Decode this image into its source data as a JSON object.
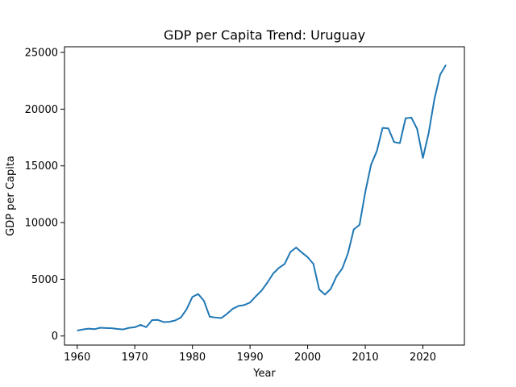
{
  "chart_data": {
    "type": "line",
    "title": "GDP per Capita Trend: Uruguay",
    "xlabel": "Year",
    "ylabel": "GDP per Capita",
    "xlim": [
      1957.8,
      2027.2
    ],
    "ylim": [
      -800,
      25500
    ],
    "xticks": [
      1960,
      1970,
      1980,
      1990,
      2000,
      2010,
      2020
    ],
    "yticks": [
      0,
      5000,
      10000,
      15000,
      20000,
      25000
    ],
    "grid": false,
    "legend": "none",
    "series": [
      {
        "color": "#1f77b4",
        "x": [
          1960,
          1961,
          1962,
          1963,
          1964,
          1965,
          1966,
          1967,
          1968,
          1969,
          1970,
          1971,
          1972,
          1973,
          1974,
          1975,
          1976,
          1977,
          1978,
          1979,
          1980,
          1981,
          1982,
          1983,
          1984,
          1985,
          1986,
          1987,
          1988,
          1989,
          1990,
          1991,
          1992,
          1993,
          1994,
          1995,
          1996,
          1997,
          1998,
          1999,
          2000,
          2001,
          2002,
          2003,
          2004,
          2005,
          2006,
          2007,
          2008,
          2009,
          2010,
          2011,
          2012,
          2013,
          2014,
          2015,
          2016,
          2017,
          2018,
          2019,
          2020,
          2021,
          2022,
          2023,
          2024
        ],
        "y": [
          480,
          580,
          650,
          600,
          730,
          700,
          680,
          620,
          580,
          720,
          770,
          980,
          780,
          1400,
          1420,
          1230,
          1250,
          1370,
          1630,
          2370,
          3450,
          3700,
          3100,
          1700,
          1630,
          1580,
          1950,
          2400,
          2650,
          2730,
          2950,
          3500,
          4000,
          4700,
          5500,
          6000,
          6350,
          7400,
          7800,
          7350,
          6950,
          6350,
          4100,
          3650,
          4150,
          5250,
          5950,
          7300,
          9400,
          9800,
          12700,
          15100,
          16300,
          18350,
          18300,
          17100,
          17000,
          19200,
          19250,
          18250,
          15700,
          17900,
          20900,
          23050,
          23900
        ]
      }
    ]
  }
}
